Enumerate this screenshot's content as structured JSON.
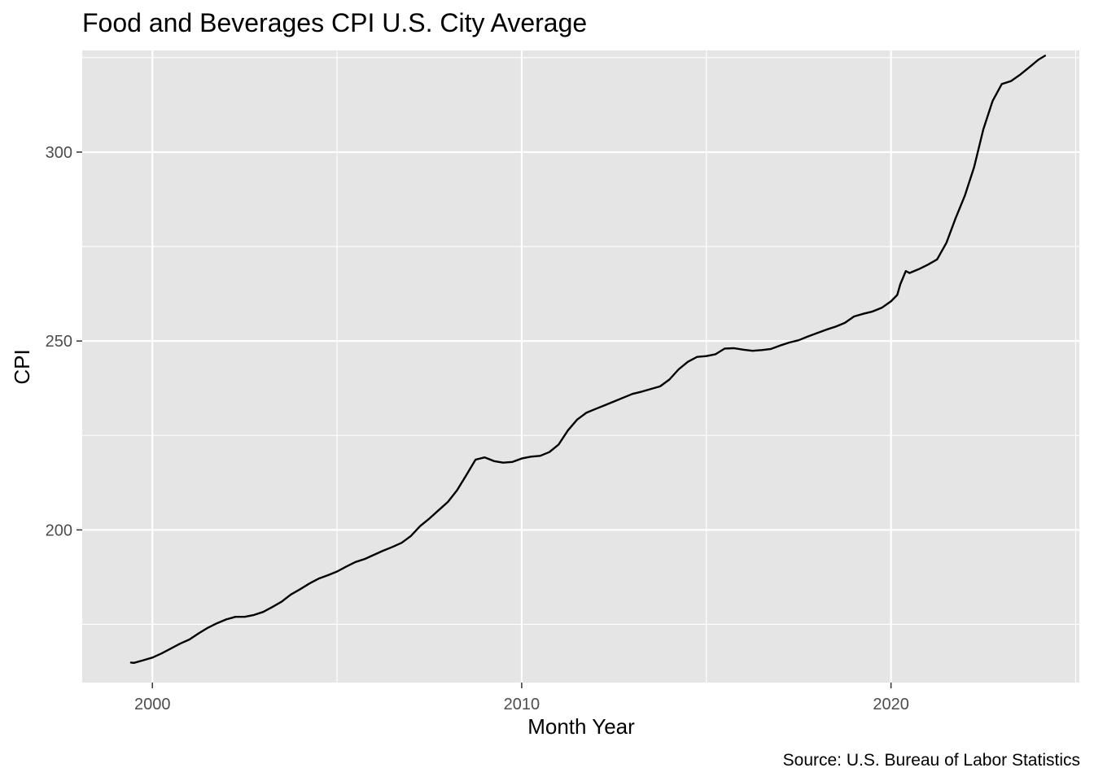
{
  "chart_data": {
    "type": "line",
    "title": "Food and Beverages CPI U.S. City Average",
    "xlabel": "Month Year",
    "ylabel": "CPI",
    "caption": "Source: U.S. Bureau of Labor Statistics",
    "xlim": [
      1998.1,
      2025.1
    ],
    "ylim": [
      159.6,
      326.9
    ],
    "x_ticks": [
      2000,
      2010,
      2020
    ],
    "x_tick_labels": [
      "2000",
      "2010",
      "2020"
    ],
    "y_ticks": [
      200,
      250,
      300
    ],
    "y_tick_labels": [
      "200",
      "250",
      "300"
    ],
    "grid": true,
    "legend": "none",
    "colors": {
      "panel": "#e5e5e5",
      "grid": "#ffffff",
      "line": "#000000",
      "tick_text": "#4d4d4d"
    },
    "series": [
      {
        "x": [
          1999.42,
          1999.5,
          1999.75,
          2000.0,
          2000.25,
          2000.5,
          2000.75,
          2001.0,
          2001.25,
          2001.5,
          2001.75,
          2002.0,
          2002.25,
          2002.5,
          2002.75,
          2003.0,
          2003.25,
          2003.5,
          2003.75,
          2004.0,
          2004.25,
          2004.5,
          2004.75,
          2005.0,
          2005.25,
          2005.5,
          2005.75,
          2006.0,
          2006.25,
          2006.5,
          2006.75,
          2007.0,
          2007.25,
          2007.5,
          2007.75,
          2008.0,
          2008.25,
          2008.5,
          2008.75,
          2009.0,
          2009.25,
          2009.5,
          2009.75,
          2010.0,
          2010.25,
          2010.5,
          2010.75,
          2011.0,
          2011.25,
          2011.5,
          2011.75,
          2012.0,
          2012.25,
          2012.5,
          2012.75,
          2013.0,
          2013.25,
          2013.5,
          2013.75,
          2014.0,
          2014.25,
          2014.5,
          2014.75,
          2015.0,
          2015.25,
          2015.5,
          2015.75,
          2016.0,
          2016.25,
          2016.5,
          2016.75,
          2017.0,
          2017.25,
          2017.5,
          2017.75,
          2018.0,
          2018.25,
          2018.5,
          2018.75,
          2019.0,
          2019.25,
          2019.5,
          2019.75,
          2020.0,
          2020.17,
          2020.25,
          2020.4,
          2020.5,
          2020.75,
          2021.0,
          2021.25,
          2021.5,
          2021.75,
          2022.0,
          2022.25,
          2022.5,
          2022.75,
          2023.0,
          2023.25,
          2023.5,
          2023.75,
          2024.0,
          2024.17
        ],
        "values": [
          164.9,
          164.8,
          165.5,
          166.2,
          167.3,
          168.6,
          169.9,
          171.0,
          172.6,
          174.1,
          175.3,
          176.3,
          177.0,
          177.0,
          177.5,
          178.3,
          179.6,
          181.0,
          182.9,
          184.3,
          185.8,
          187.1,
          188.0,
          189.0,
          190.3,
          191.5,
          192.3,
          193.4,
          194.5,
          195.5,
          196.6,
          198.4,
          201.0,
          203.0,
          205.2,
          207.4,
          210.5,
          214.5,
          218.6,
          219.2,
          218.2,
          217.8,
          218.0,
          218.9,
          219.4,
          219.6,
          220.6,
          222.6,
          226.3,
          229.2,
          231.0,
          232.0,
          233.0,
          234.0,
          235.0,
          236.0,
          236.6,
          237.3,
          238.0,
          239.8,
          242.5,
          244.5,
          245.8,
          246.0,
          246.5,
          248.0,
          248.1,
          247.7,
          247.4,
          247.6,
          247.9,
          248.8,
          249.6,
          250.2,
          251.2,
          252.1,
          253.0,
          253.8,
          254.8,
          256.5,
          257.2,
          257.8,
          258.8,
          260.5,
          262.2,
          265.0,
          268.5,
          268.0,
          269.0,
          270.2,
          271.6,
          276.0,
          282.5,
          288.5,
          296.0,
          306.0,
          313.5,
          318.0,
          318.8,
          320.5,
          322.5,
          324.5,
          325.5
        ]
      }
    ]
  }
}
